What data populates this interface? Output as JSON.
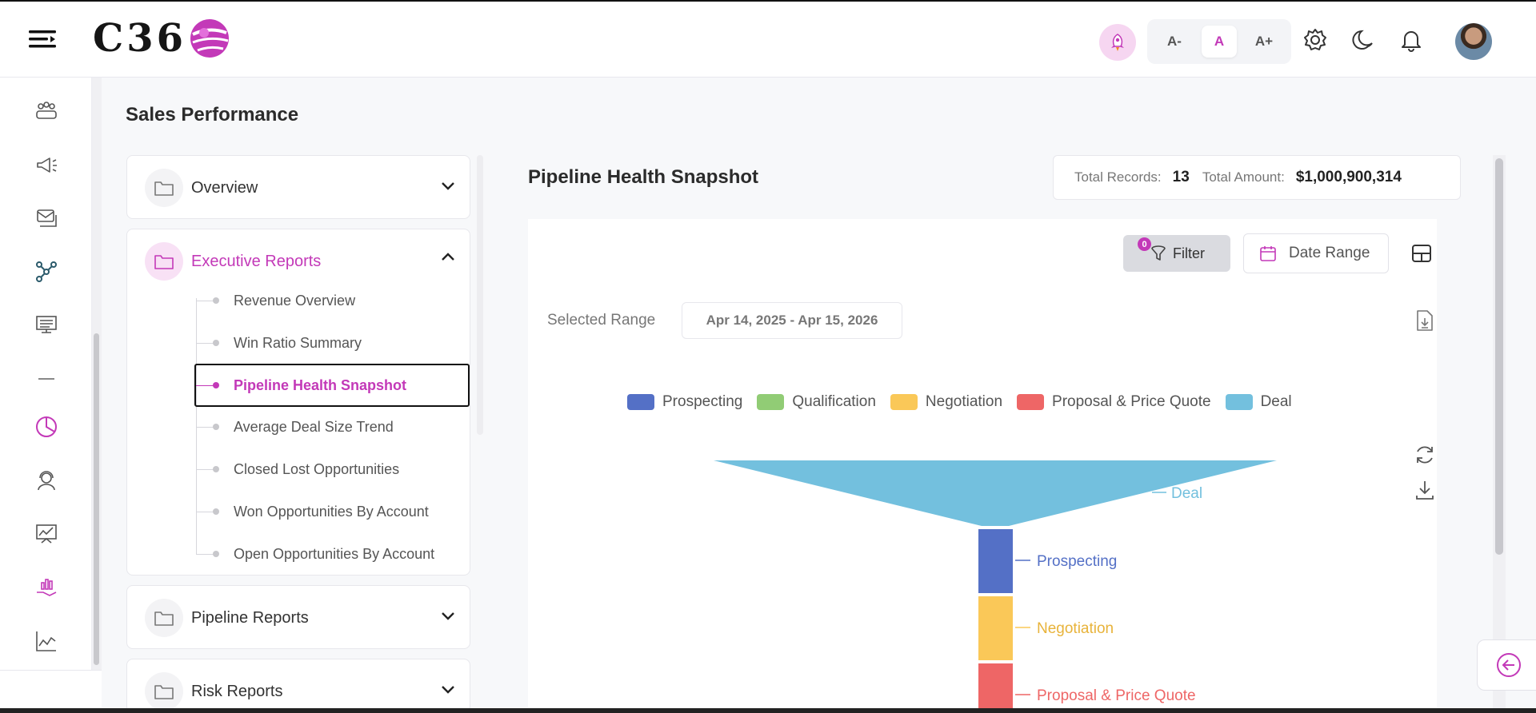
{
  "header": {
    "logo_text": "C36",
    "font_small": "A-",
    "font_normal": "A",
    "font_large": "A+"
  },
  "page": {
    "title": "Sales Performance"
  },
  "nav": {
    "groups": [
      {
        "label": "Overview"
      },
      {
        "label": "Executive Reports"
      },
      {
        "label": "Pipeline Reports"
      },
      {
        "label": "Risk Reports"
      }
    ],
    "executive_items": [
      {
        "label": "Revenue Overview"
      },
      {
        "label": "Win Ratio Summary"
      },
      {
        "label": "Pipeline Health Snapshot"
      },
      {
        "label": "Average Deal Size Trend"
      },
      {
        "label": "Closed Lost Opportunities"
      },
      {
        "label": "Won Opportunities By Account"
      },
      {
        "label": "Open Opportunities By Account"
      }
    ]
  },
  "report": {
    "title": "Pipeline Health Snapshot",
    "total_records_label": "Total Records:",
    "total_records": "13",
    "total_amount_label": "Total Amount:",
    "total_amount": "$1,000,900,314",
    "filter_label": "Filter",
    "filter_count": "0",
    "date_range_label": "Date Range",
    "selected_range_label": "Selected Range",
    "selected_range": "Apr 14, 2025 - Apr 15, 2026"
  },
  "colors": {
    "accent": "#c339b8",
    "prospecting": "#5470c6",
    "qualification": "#91cc75",
    "negotiation": "#fac858",
    "proposal": "#ee6666",
    "deal": "#73c0de"
  },
  "chart_data": {
    "type": "funnel",
    "legend_position": "top-center",
    "legend": [
      "Prospecting",
      "Qualification",
      "Negotiation",
      "Proposal & Price Quote",
      "Deal"
    ],
    "stages": [
      {
        "name": "Deal",
        "label": "Deal"
      },
      {
        "name": "Prospecting",
        "label": "Prospecting"
      },
      {
        "name": "Negotiation",
        "label": "Negotiation"
      },
      {
        "name": "Proposal & Price Quote",
        "label": "Proposal & Price Quote"
      }
    ]
  }
}
